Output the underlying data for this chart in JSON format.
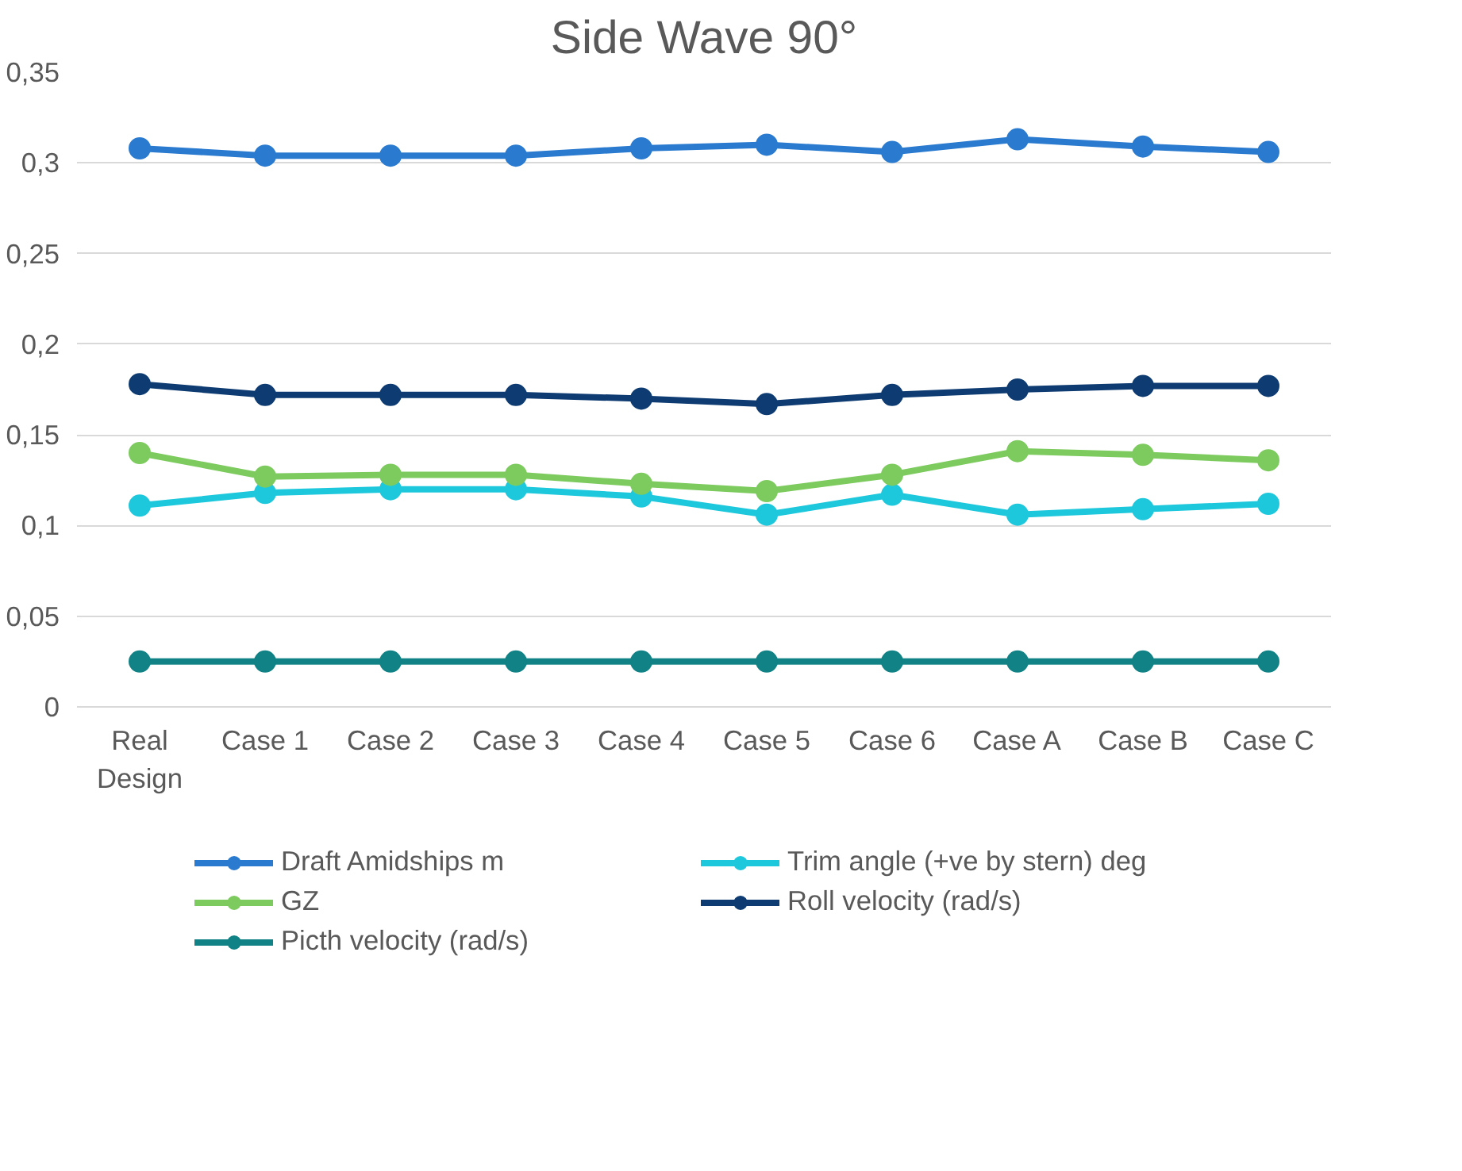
{
  "chart_data": {
    "type": "line",
    "title": "Side Wave 90°",
    "categories": [
      "Real Design",
      "Case 1",
      "Case 2",
      "Case 3",
      "Case 4",
      "Case 5",
      "Case 6",
      "Case A",
      "Case B",
      "Case C"
    ],
    "series": [
      {
        "name": "Draft Amidships m",
        "color": "#2a7bd0",
        "values": [
          0.308,
          0.304,
          0.304,
          0.304,
          0.308,
          0.31,
          0.306,
          0.313,
          0.309,
          0.306
        ]
      },
      {
        "name": "Trim angle (+ve by stern) deg",
        "color": "#1ec8dc",
        "values": [
          0.111,
          0.118,
          0.12,
          0.12,
          0.116,
          0.106,
          0.117,
          0.106,
          0.109,
          0.112
        ]
      },
      {
        "name": "GZ",
        "color": "#7dcb5e",
        "values": [
          0.14,
          0.127,
          0.128,
          0.128,
          0.123,
          0.119,
          0.128,
          0.141,
          0.139,
          0.136
        ]
      },
      {
        "name": "Roll velocity (rad/s)",
        "color": "#0e3c72",
        "values": [
          0.178,
          0.172,
          0.172,
          0.172,
          0.17,
          0.167,
          0.172,
          0.175,
          0.177,
          0.177
        ]
      },
      {
        "name": "Picth velocity (rad/s)",
        "color": "#118285",
        "values": [
          0.025,
          0.025,
          0.025,
          0.025,
          0.025,
          0.025,
          0.025,
          0.025,
          0.025,
          0.025
        ]
      }
    ],
    "ylim": [
      0,
      0.35
    ],
    "yticks": [
      0,
      {
        "value": 0.05,
        "label": "0,05"
      },
      {
        "value": 0.1,
        "label": "0,1"
      },
      {
        "value": 0.15,
        "label": "0,15"
      },
      {
        "value": 0.2,
        "label": "0,2"
      },
      {
        "value": 0.25,
        "label": "0,25"
      },
      {
        "value": 0.3,
        "label": "0,3"
      },
      {
        "value": 0.35,
        "label": "0,35"
      }
    ],
    "grid": "y",
    "legend": "bottom",
    "marker": "circle",
    "line_style": "solid"
  }
}
